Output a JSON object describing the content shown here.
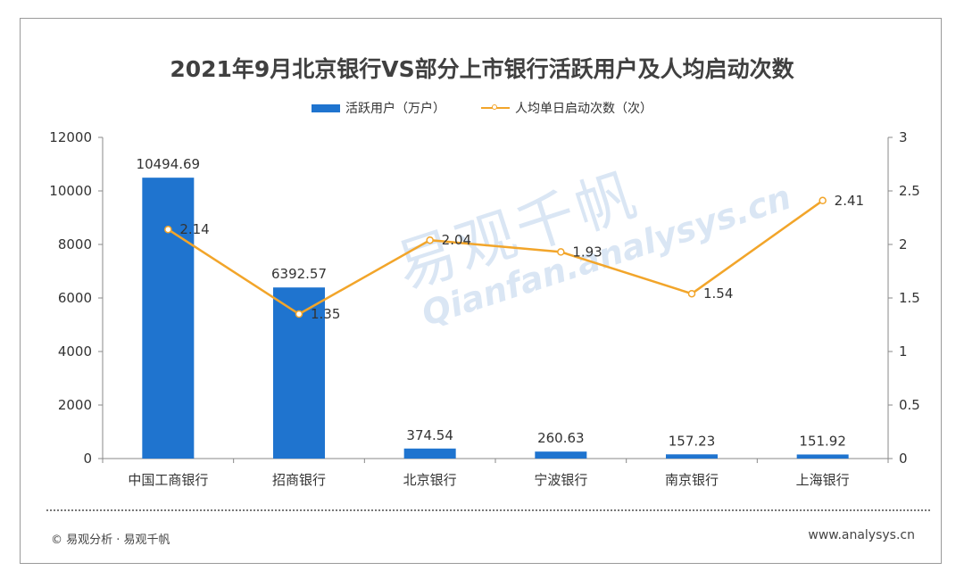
{
  "title": "2021年9月北京银行VS部分上市银行活跃用户及人均启动次数",
  "legend": {
    "bar_label": "活跃用户（万户）",
    "line_label": "人均单日启动次数（次）"
  },
  "colors": {
    "bar": "#1f74cf",
    "line": "#f2a52a"
  },
  "watermark": {
    "cn": "易观千帆",
    "en": "Qianfan.analysys.cn"
  },
  "footer": {
    "source": "© 易观分析 · 易观千帆",
    "url": "www.analysys.cn"
  },
  "chart_data": {
    "type": "bar",
    "title": "2021年9月北京银行VS部分上市银行活跃用户及人均启动次数",
    "categories": [
      "中国工商银行",
      "招商银行",
      "北京银行",
      "宁波银行",
      "南京银行",
      "上海银行"
    ],
    "series": [
      {
        "name": "活跃用户（万户）",
        "type": "bar",
        "axis": "left",
        "values": [
          10494.69,
          6392.57,
          374.54,
          260.63,
          157.23,
          151.92
        ],
        "labels": [
          "10494.69",
          "6392.57",
          "374.54",
          "260.63",
          "157.23",
          "151.92"
        ]
      },
      {
        "name": "人均单日启动次数（次）",
        "type": "line",
        "axis": "right",
        "values": [
          2.14,
          1.35,
          2.04,
          1.93,
          1.54,
          2.41
        ],
        "labels": [
          "2.14",
          "1.35",
          "2.04",
          "1.93",
          "1.54",
          "2.41"
        ]
      }
    ],
    "ylim_left": [
      0,
      12000
    ],
    "yticks_left": [
      "0",
      "2000",
      "4000",
      "6000",
      "8000",
      "10000",
      "12000"
    ],
    "ylim_right": [
      0,
      3
    ],
    "yticks_right": [
      "0",
      "0.5",
      "1",
      "1.5",
      "2",
      "2.5",
      "3"
    ],
    "grid": false,
    "legend_position": "top-center"
  }
}
